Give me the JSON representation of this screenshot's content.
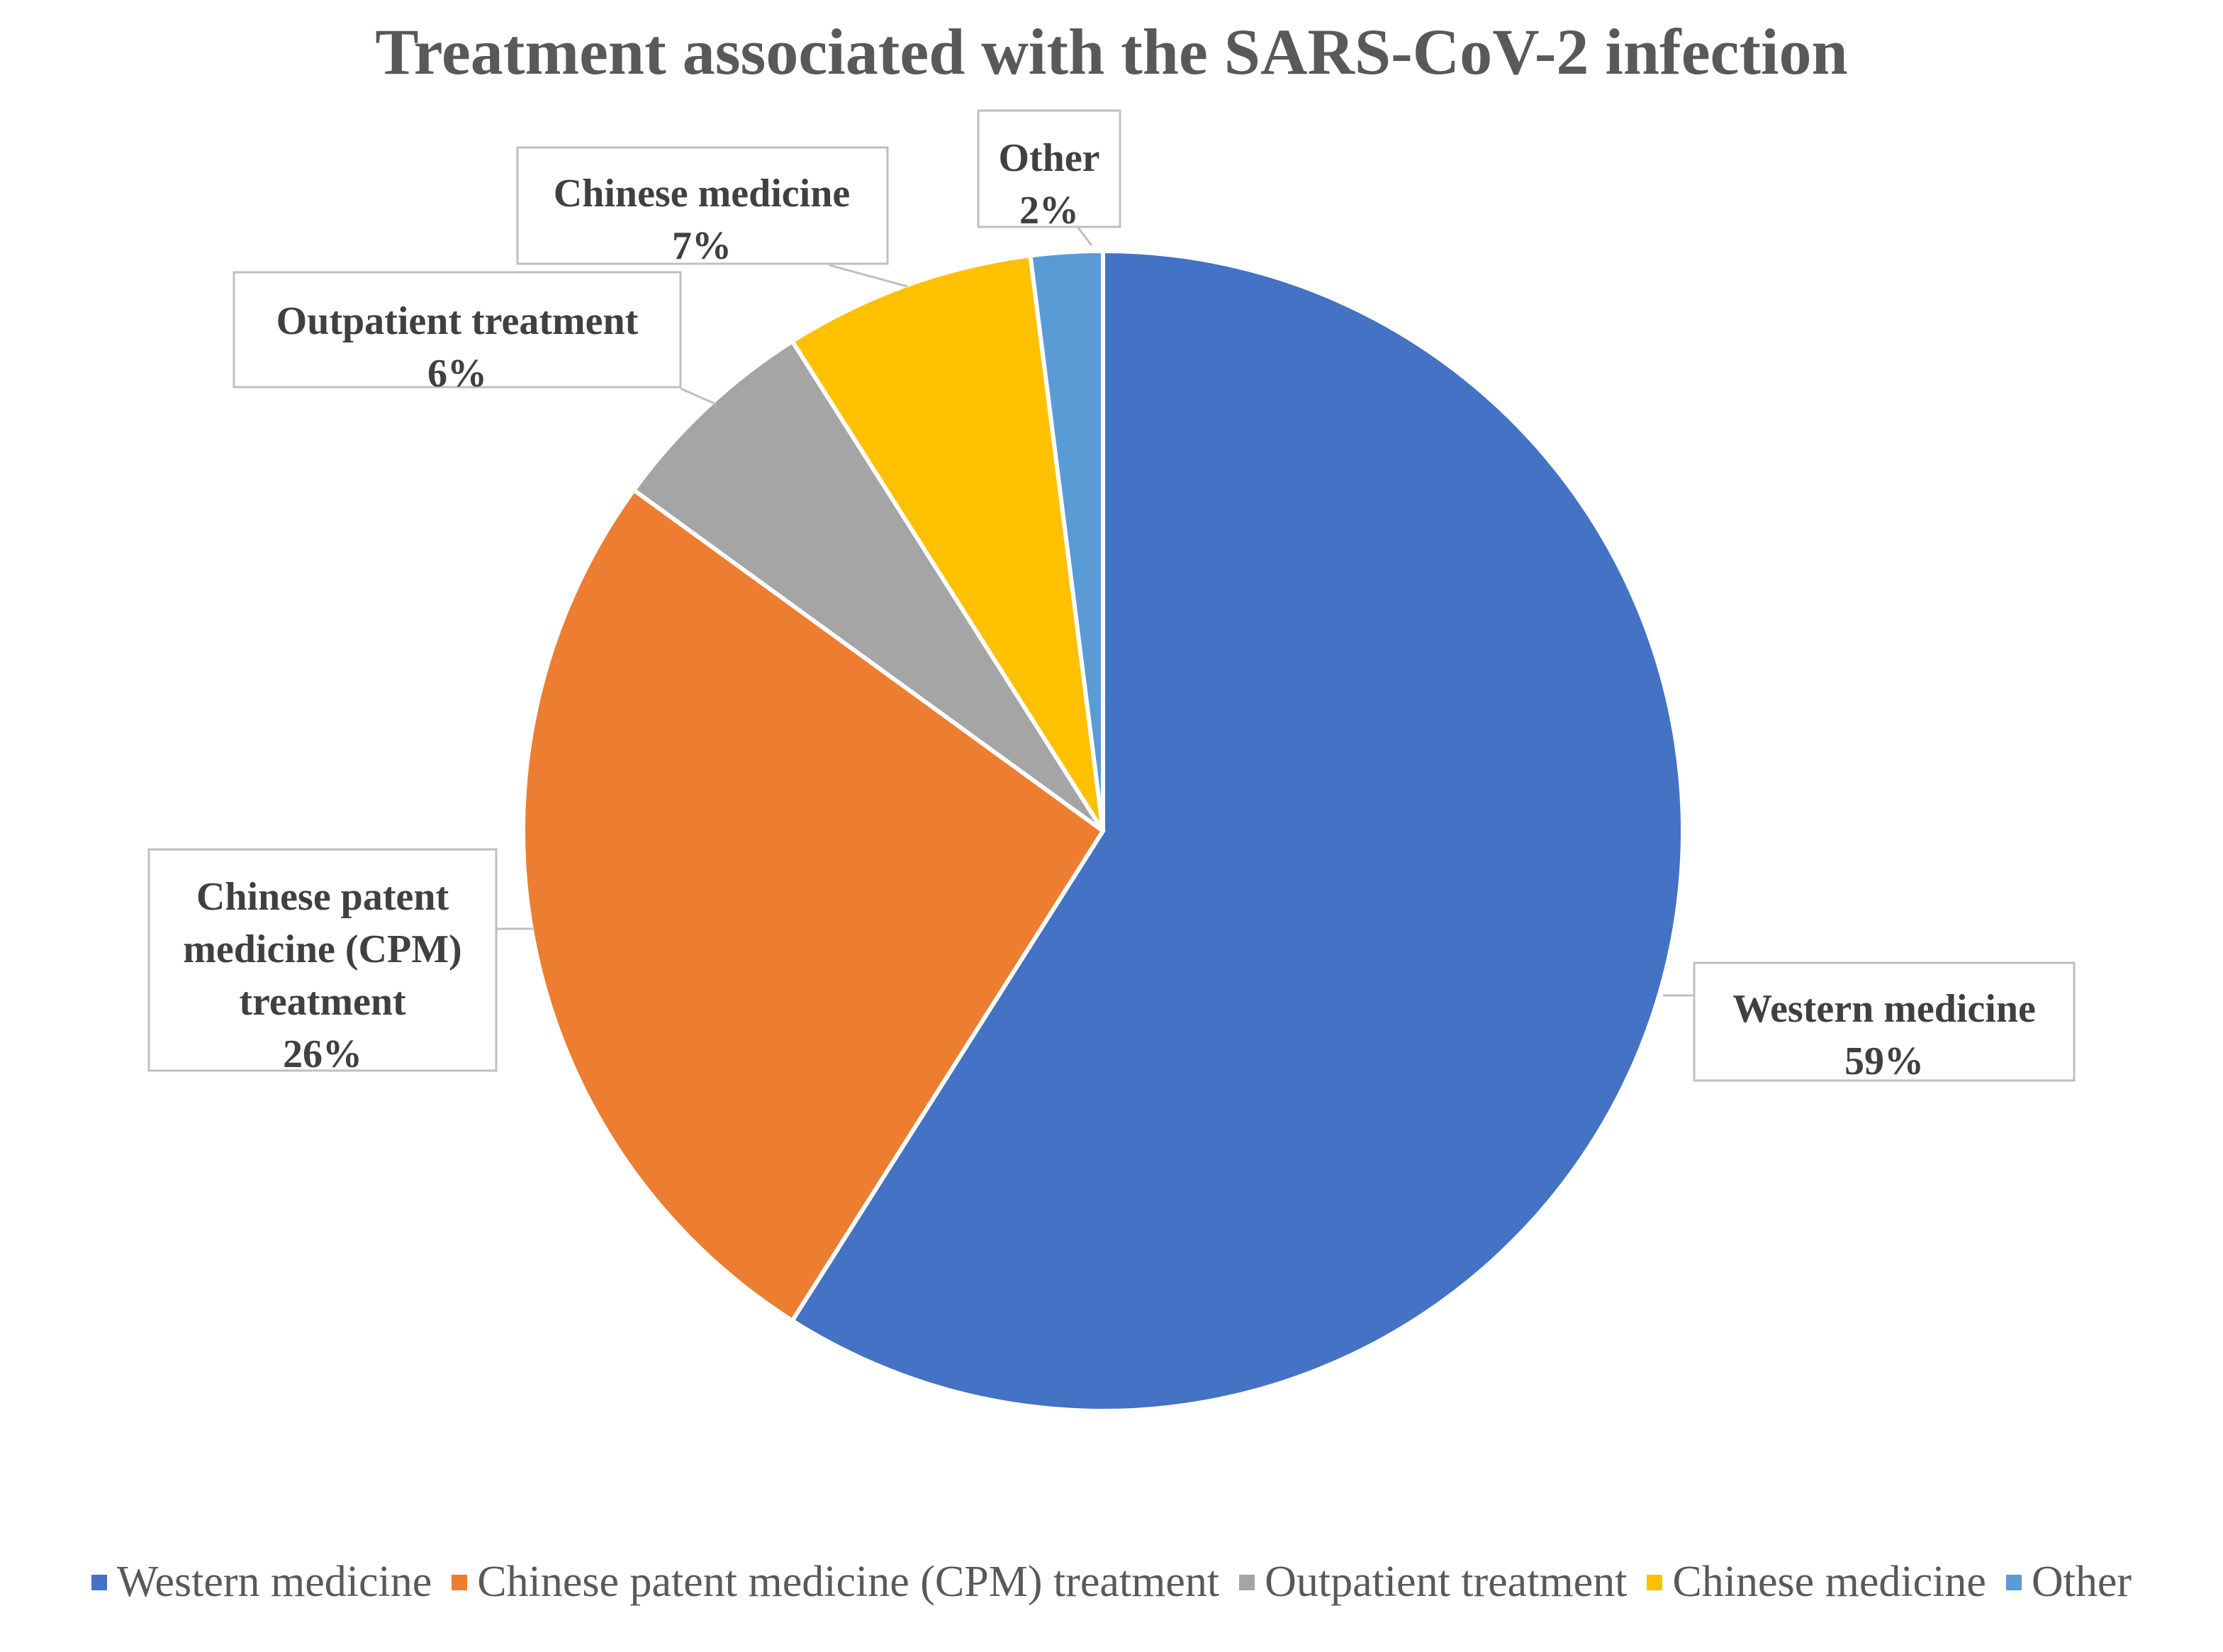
{
  "chart_data": {
    "type": "pie",
    "title": "Treatment associated with the SARS-CoV-2 infection",
    "categories": [
      "Western medicine",
      "Chinese patent medicine (CPM) treatment",
      "Outpatient treatment",
      "Chinese medicine",
      "Other"
    ],
    "values": [
      59,
      26,
      6,
      7,
      2
    ],
    "unit": "%",
    "colors": [
      "#4472C4",
      "#ED7D31",
      "#A5A5A5",
      "#FFC000",
      "#5B9BD5"
    ],
    "data_labels": [
      [
        "Western medicine",
        "59%"
      ],
      [
        "Chinese patent",
        "medicine (CPM)",
        "treatment",
        "26%"
      ],
      [
        "Outpatient treatment",
        "6%"
      ],
      [
        "Chinese medicine",
        "7%"
      ],
      [
        "Other",
        "2%"
      ]
    ],
    "legend": {
      "placement": "bottom",
      "entries": [
        "Western medicine",
        "Chinese patent medicine (CPM) treatment",
        "Outpatient treatment",
        "Chinese medicine",
        "Other"
      ]
    }
  }
}
